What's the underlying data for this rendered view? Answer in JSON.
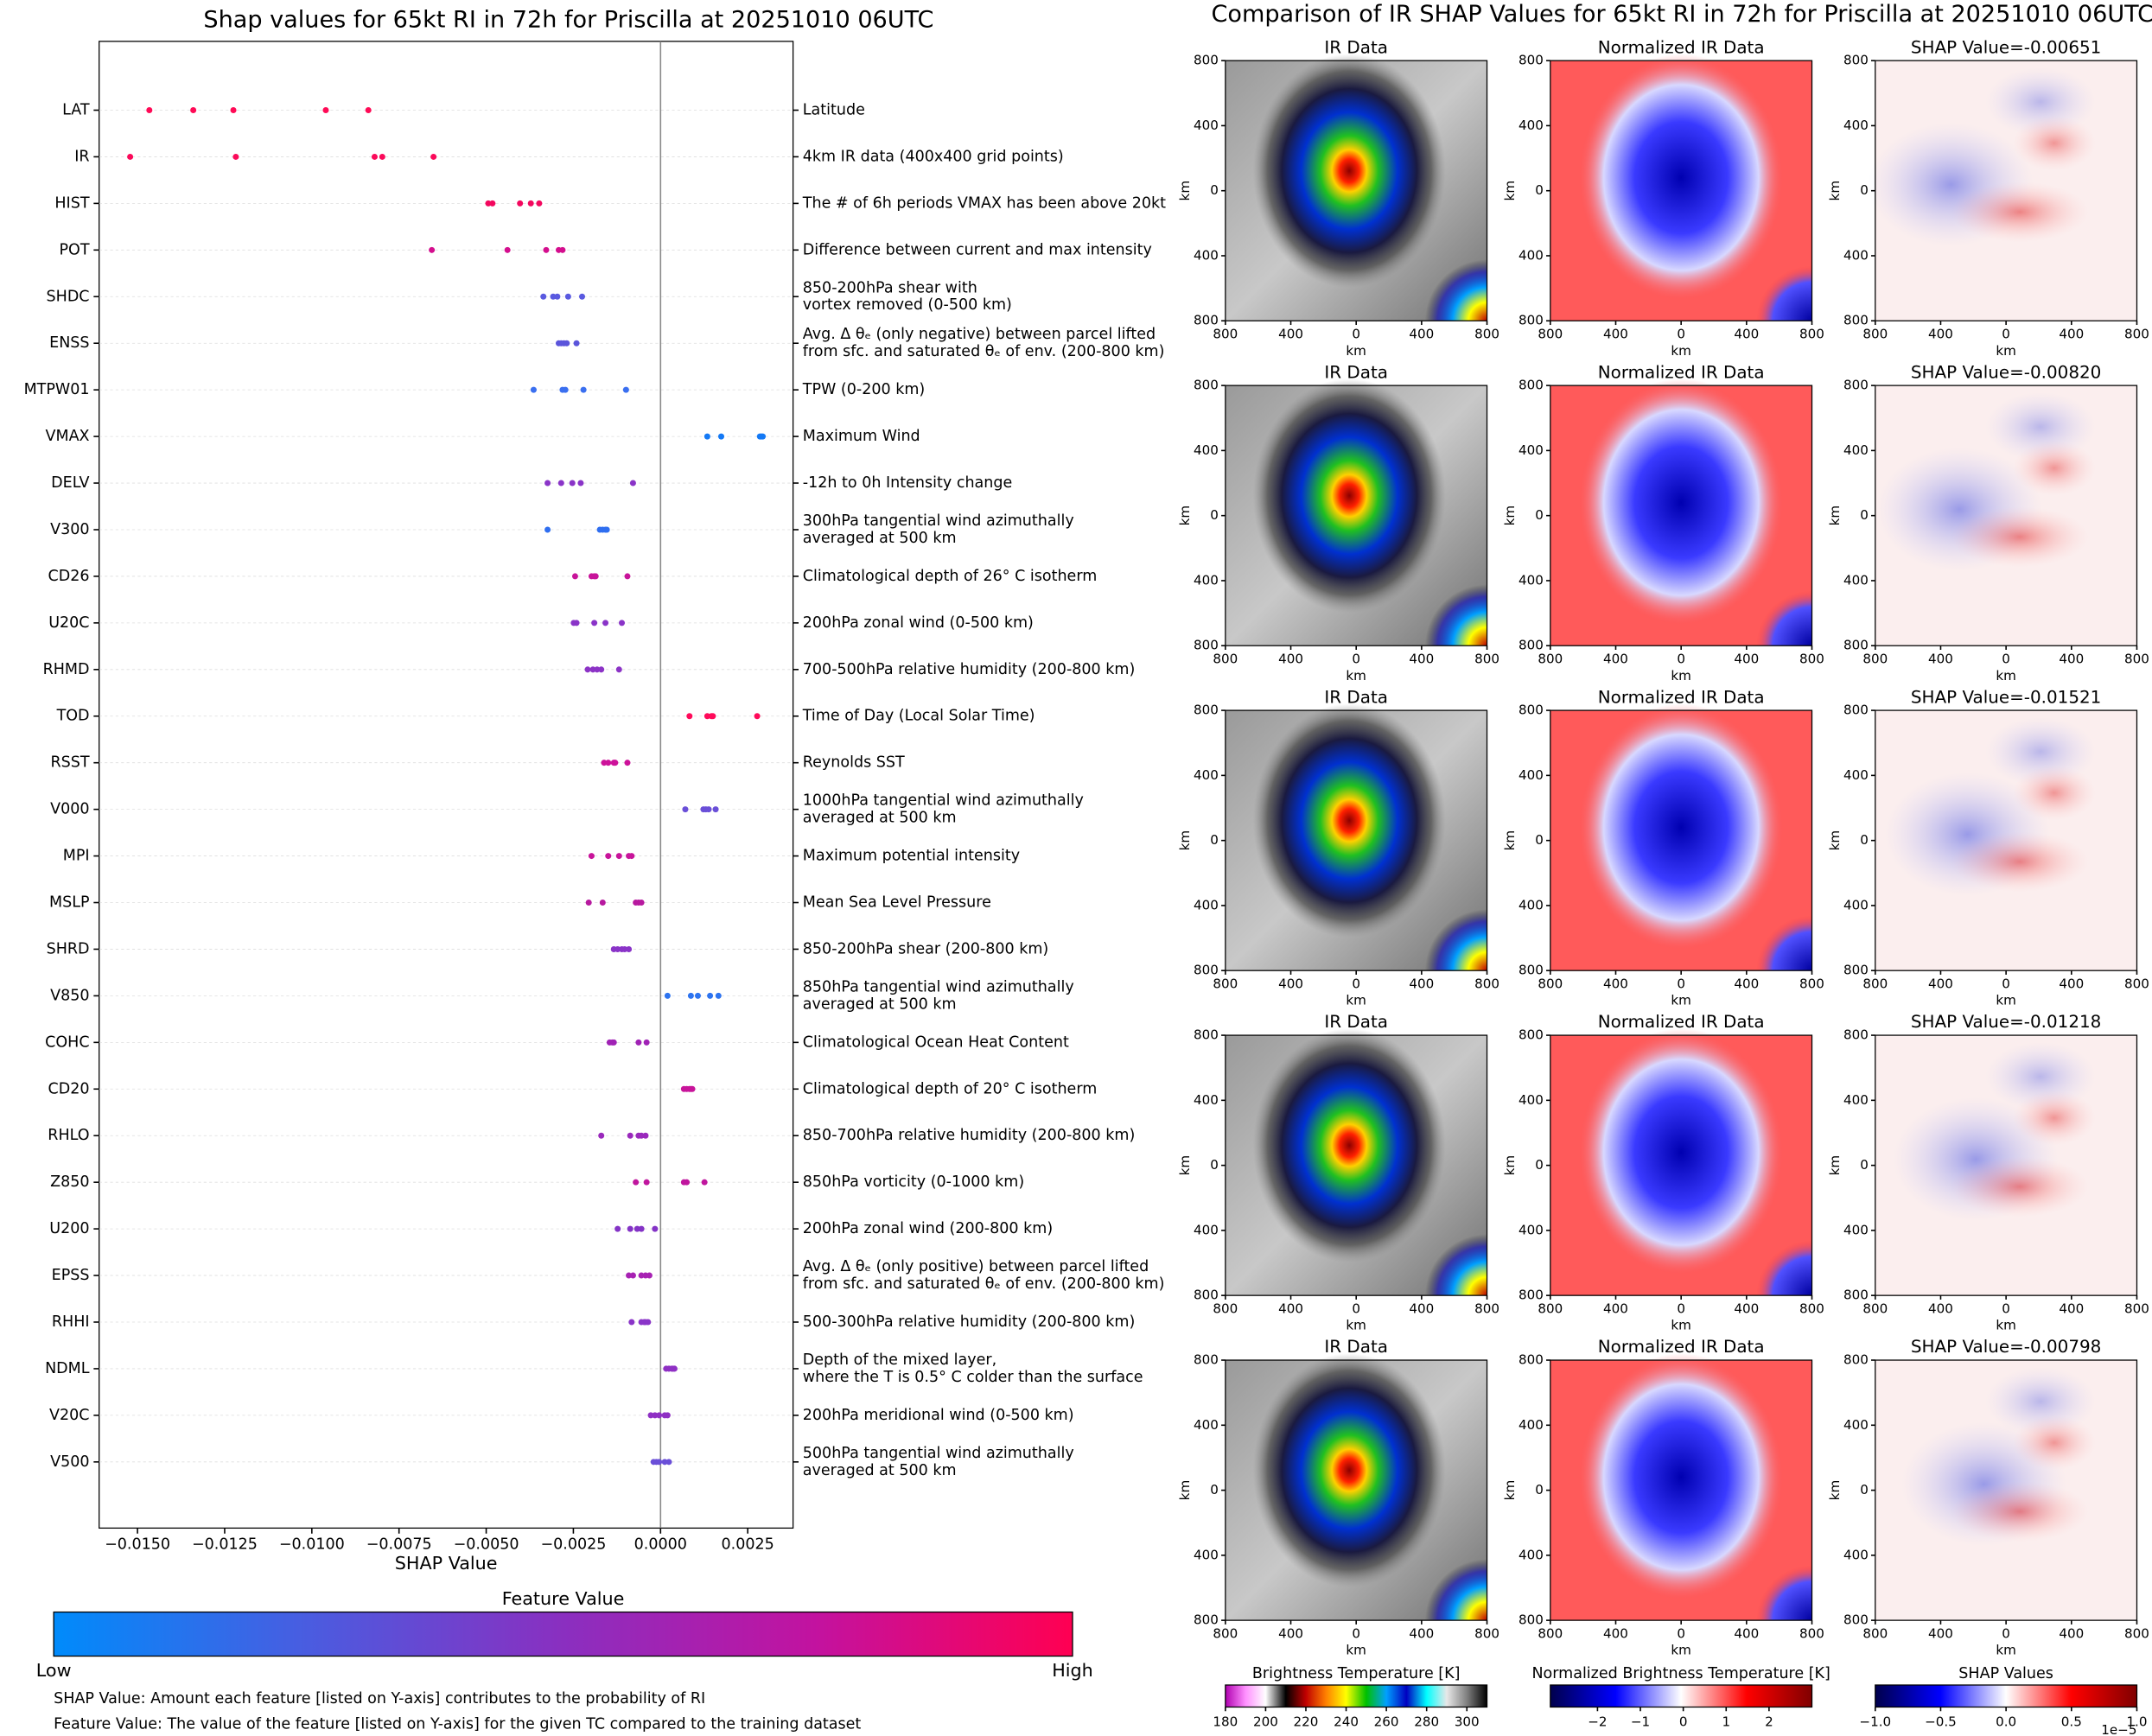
{
  "chart_data": [
    {
      "type": "strip",
      "title": "Shap values for 65kt RI in 72h for Priscilla at 20251010 06UTC",
      "xlabel": "SHAP Value",
      "categories": [
        "LAT",
        "IR",
        "HIST",
        "POT",
        "SHDC",
        "ENSS",
        "MTPW01",
        "VMAX",
        "DELV",
        "V300",
        "CD26",
        "U20C",
        "RHMD",
        "TOD",
        "RSST",
        "V000",
        "MPI",
        "MSLP",
        "SHRD",
        "V850",
        "COHC",
        "CD20",
        "RHLO",
        "Z850",
        "U200",
        "EPSS",
        "RHHI",
        "NDML",
        "V20C",
        "V500"
      ],
      "descriptions": [
        [
          "Latitude"
        ],
        [
          "4km IR data (400x400 grid points)"
        ],
        [
          "The # of 6h periods VMAX has been above 20kt"
        ],
        [
          "Difference between current and max intensity"
        ],
        [
          "850-200hPa shear with",
          "vortex removed (0-500 km)"
        ],
        [
          "Avg. Δ θₑ (only negative) between parcel lifted",
          "from sfc. and saturated θₑ of env. (200-800 km)"
        ],
        [
          "TPW (0-200 km)"
        ],
        [
          "Maximum Wind"
        ],
        [
          "-12h to 0h Intensity change"
        ],
        [
          "300hPa tangential wind azimuthally",
          "averaged at 500 km"
        ],
        [
          "Climatological depth of 26° C isotherm"
        ],
        [
          "200hPa zonal wind (0-500 km)"
        ],
        [
          "700-500hPa relative humidity (200-800 km)"
        ],
        [
          "Time of Day (Local Solar Time)"
        ],
        [
          "Reynolds SST"
        ],
        [
          "1000hPa tangential wind azimuthally",
          "averaged at 500 km"
        ],
        [
          "Maximum potential intensity"
        ],
        [
          "Mean Sea Level Pressure"
        ],
        [
          "850-200hPa shear (200-800 km)"
        ],
        [
          "850hPa tangential wind azimuthally",
          "averaged at 500 km"
        ],
        [
          "Climatological Ocean Heat Content"
        ],
        [
          "Climatological depth of 20° C isotherm"
        ],
        [
          "850-700hPa relative humidity (200-800 km)"
        ],
        [
          "850hPa vorticity (0-1000 km)"
        ],
        [
          "200hPa zonal wind (200-800 km)"
        ],
        [
          "Avg. Δ θₑ (only positive) between parcel lifted",
          "from sfc. and saturated θₑ of env. (200-800 km)"
        ],
        [
          "500-300hPa relative humidity (200-800 km)"
        ],
        [
          "Depth of the mixed layer,",
          "where the T is 0.5° C colder than the surface"
        ],
        [
          "200hPa meridional wind (0-500 km)"
        ],
        [
          "500hPa tangential wind azimuthally",
          "averaged at 500 km"
        ]
      ],
      "values": [
        [
          -0.01466,
          -0.0134,
          -0.01225,
          -0.0096,
          -0.00838
        ],
        [
          -0.00651,
          -0.0082,
          -0.01521,
          -0.01218,
          -0.00798
        ],
        [
          -0.00494,
          -0.00482,
          -0.00403,
          -0.00372,
          -0.00348
        ],
        [
          -0.00656,
          -0.00439,
          -0.00328,
          -0.00292,
          -0.00281
        ],
        [
          -0.00336,
          -0.00308,
          -0.00296,
          -0.00265,
          -0.00225
        ],
        [
          -0.00292,
          -0.00285,
          -0.00277,
          -0.00269,
          -0.00241
        ],
        [
          -0.00364,
          -0.00281,
          -0.00273,
          -0.00221,
          -0.00099
        ],
        [
          0.00134,
          0.00174,
          0.00285,
          0.00289,
          0.00293
        ],
        [
          -0.00324,
          -0.00285,
          -0.00253,
          -0.00229,
          -0.00079
        ],
        [
          -0.00324,
          -0.00174,
          -0.00166,
          -0.00158,
          -0.00154
        ],
        [
          -0.00245,
          -0.00198,
          -0.0019,
          -0.00186,
          -0.00095
        ],
        [
          -0.00249,
          -0.00241,
          -0.0019,
          -0.00158,
          -0.00111
        ],
        [
          -0.00209,
          -0.00194,
          -0.00182,
          -0.0017,
          -0.00119
        ],
        [
          0.00083,
          0.00134,
          0.00146,
          0.0015,
          0.00277
        ],
        [
          -0.00162,
          -0.0015,
          -0.00134,
          -0.0013,
          -0.00095
        ],
        [
          0.00071,
          0.00123,
          0.0013,
          0.00138,
          0.00158
        ],
        [
          -0.00198,
          -0.0015,
          -0.00119,
          -0.00091,
          -0.00083
        ],
        [
          -0.00206,
          -0.00166,
          -0.00071,
          -0.00063,
          -0.00055
        ],
        [
          -0.00134,
          -0.00123,
          -0.00111,
          -0.00103,
          -0.00091
        ],
        [
          0.0002,
          0.00087,
          0.00107,
          0.00142,
          0.00166
        ],
        [
          -0.00146,
          -0.00138,
          -0.00134,
          -0.00063,
          -0.0004
        ],
        [
          0.00067,
          0.00075,
          0.00083,
          0.00087,
          0.00091
        ],
        [
          -0.0017,
          -0.00087,
          -0.00063,
          -0.00055,
          -0.00043
        ],
        [
          -0.00071,
          -0.0004,
          0.00067,
          0.00075,
          0.00126
        ],
        [
          -0.00123,
          -0.00087,
          -0.00067,
          -0.00055,
          -0.00016
        ],
        [
          -0.00091,
          -0.00079,
          -0.00055,
          -0.00043,
          -0.00032
        ],
        [
          -0.00083,
          -0.00055,
          -0.00047,
          -0.00043,
          -0.00036
        ],
        [
          0.00016,
          0.00024,
          0.00032,
          0.00036,
          0.0004
        ],
        [
          -0.00028,
          -0.00016,
          -4e-05,
          0.00012,
          0.0002
        ],
        [
          -0.0002,
          -0.00012,
          -4e-05,
          0.00012,
          0.00024
        ]
      ],
      "colors": [
        "#ff0a56",
        "#fb0a5a",
        "#f3075e",
        "#d40e8e",
        "#5a5ae0",
        "#5b55db",
        "#3a6ff0",
        "#1479f5",
        "#8a34c8",
        "#2f6ef0",
        "#c8149a",
        "#8a34c8",
        "#8c33c6",
        "#ff0a5a",
        "#cd129a",
        "#6a4fd8",
        "#c8149a",
        "#b7199f",
        "#8a34c8",
        "#2e74f0",
        "#a022b5",
        "#c8149a",
        "#9a29bc",
        "#c0169e",
        "#8433c6",
        "#a722b3",
        "#8a34c8",
        "#8f30c4",
        "#8f30c4",
        "#6a4fd8"
      ],
      "xlim": [
        -0.0161,
        0.0038
      ],
      "xticks": [
        {
          "value": -0.015,
          "label": "−0.0150"
        },
        {
          "value": -0.0125,
          "label": "−0.0125"
        },
        {
          "value": -0.01,
          "label": "−0.0100"
        },
        {
          "value": -0.0075,
          "label": "−0.0075"
        },
        {
          "value": -0.005,
          "label": "−0.0050"
        },
        {
          "value": -0.0025,
          "label": "−0.0025"
        },
        {
          "value": 0,
          "label": "0.0000"
        },
        {
          "value": 0.0025,
          "label": "0.0025"
        }
      ],
      "grid": true,
      "colorbar": {
        "title": "Feature Value",
        "low": "Low",
        "high": "High",
        "colors": [
          "#008bfb",
          "#4a5ce0",
          "#8a2fc0",
          "#c3129f",
          "#ff0052"
        ]
      },
      "notes": [
        "SHAP Value: Amount each feature [listed on Y-axis] contributes to the probability of RI",
        "Feature Value: The value of the feature [listed on Y-axis] for the given TC compared to the training dataset"
      ]
    },
    {
      "type": "image-grid",
      "title": "Comparison of IR SHAP Values for 65kt RI in 72h for Priscilla at 20251010 06UTC",
      "column_titles": [
        "IR Data",
        "Normalized IR Data"
      ],
      "shap_titles": [
        "SHAP Value=-0.00651",
        "SHAP Value=-0.00820",
        "SHAP Value=-0.01521",
        "SHAP Value=-0.01218",
        "SHAP Value=-0.00798"
      ],
      "xlabel": "km",
      "ylabel": "km",
      "xlim": [
        -800,
        800
      ],
      "ylim": [
        -800,
        800
      ],
      "xticks": [
        {
          "value": -800,
          "label": "800"
        },
        {
          "value": -400,
          "label": "400"
        },
        0,
        400,
        800
      ],
      "yticks": [
        800,
        400,
        0,
        {
          "value": -400,
          "label": "400"
        },
        {
          "value": -800,
          "label": "800"
        }
      ],
      "colorbars": [
        {
          "label": "Brightness Temperature [K]",
          "lim": [
            180,
            310
          ],
          "ticks": [
            180,
            200,
            220,
            240,
            260,
            280,
            300
          ],
          "colors": [
            "#b000b0",
            "#ff90ff",
            "#ffffff",
            "#000000",
            "#c00000",
            "#ff8000",
            "#ffff00",
            "#00c000",
            "#00a0ff",
            "#0000c0",
            "#00ffff",
            "#e8e8e8",
            "#808080",
            "#000000"
          ]
        },
        {
          "label": "Normalized Brightness Temperature [K]",
          "lim": [
            -3.1,
            3.0
          ],
          "ticks": [
            {
              "value": -2,
              "label": "−2"
            },
            {
              "value": -1,
              "label": "−1"
            },
            0,
            1,
            2
          ],
          "colors": [
            "#00004c",
            "#0000ff",
            "#ffffff",
            "#ff0000",
            "#800000"
          ]
        },
        {
          "label": "SHAP Values",
          "lim": [
            -1,
            1
          ],
          "ticks": [
            {
              "value": -1,
              "label": "−1.0"
            },
            {
              "value": -0.5,
              "label": "−0.5"
            },
            {
              "value": 0,
              "label": "0.0"
            },
            0.5,
            {
              "value": 1,
              "label": "1.0"
            }
          ],
          "colors": [
            "#00004c",
            "#0000ff",
            "#ffffff",
            "#ff0000",
            "#800000"
          ],
          "offset": "1e−5"
        }
      ]
    }
  ]
}
